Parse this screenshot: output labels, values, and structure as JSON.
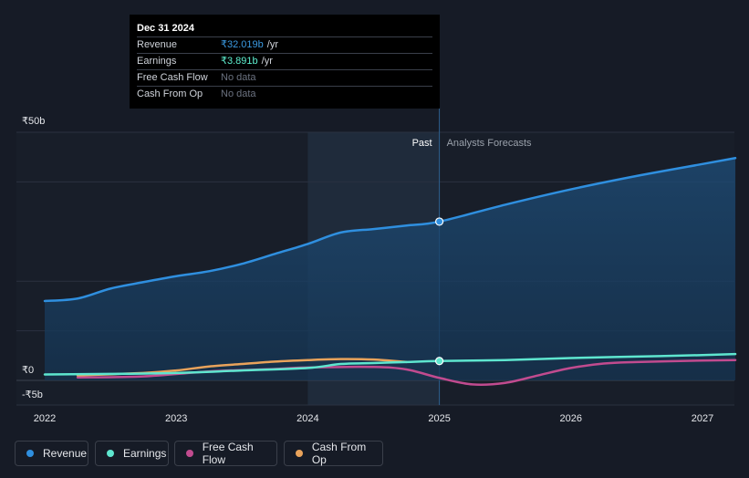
{
  "tooltip": {
    "date": "Dec 31 2024",
    "rows": [
      {
        "label": "Revenue",
        "value": "₹32.019b",
        "unit": "/yr",
        "color": "#3b9ae1"
      },
      {
        "label": "Earnings",
        "value": "₹3.891b",
        "unit": "/yr",
        "color": "#5ef0d0"
      },
      {
        "label": "Free Cash Flow",
        "value": "No data",
        "unit": ""
      },
      {
        "label": "Cash From Op",
        "value": "No data",
        "unit": ""
      }
    ]
  },
  "labels": {
    "past": "Past",
    "forecast": "Analysts Forecasts"
  },
  "legend": [
    {
      "label": "Revenue",
      "color": "#2f8fdf"
    },
    {
      "label": "Earnings",
      "color": "#5ee6cf"
    },
    {
      "label": "Free Cash Flow",
      "color": "#c14b8f"
    },
    {
      "label": "Cash From Op",
      "color": "#e9a35b"
    }
  ],
  "chart_data": {
    "type": "line",
    "units": "₹b",
    "y_ticks": [
      "₹50b",
      "₹0",
      "-₹5b"
    ],
    "y_tick_values": [
      50,
      0,
      -5
    ],
    "x_ticks": [
      "2022",
      "2023",
      "2024",
      "2025",
      "2026",
      "2027"
    ],
    "x_tick_values": [
      2022,
      2023,
      2024,
      2025,
      2026,
      2027
    ],
    "xlim": [
      2021.8,
      2027.25
    ],
    "ylim": [
      -5,
      50
    ],
    "past_cutoff": 2025.0,
    "highlight_start": 2024.0,
    "grid": true,
    "series": [
      {
        "name": "Revenue",
        "color": "#2f8fdf",
        "fill": true,
        "points": [
          [
            2022.0,
            16.0
          ],
          [
            2022.25,
            16.5
          ],
          [
            2022.5,
            18.5
          ],
          [
            2022.75,
            19.8
          ],
          [
            2023.0,
            21.0
          ],
          [
            2023.25,
            22.0
          ],
          [
            2023.5,
            23.5
          ],
          [
            2023.75,
            25.5
          ],
          [
            2024.0,
            27.5
          ],
          [
            2024.25,
            29.8
          ],
          [
            2024.5,
            30.5
          ],
          [
            2024.75,
            31.2
          ],
          [
            2025.0,
            32.0
          ],
          [
            2025.5,
            35.4
          ],
          [
            2026.0,
            38.5
          ],
          [
            2026.5,
            41.2
          ],
          [
            2027.0,
            43.6
          ],
          [
            2027.25,
            44.8
          ]
        ]
      },
      {
        "name": "Earnings",
        "color": "#5ee6cf",
        "fill": false,
        "points": [
          [
            2022.0,
            1.2
          ],
          [
            2022.5,
            1.3
          ],
          [
            2023.0,
            1.5
          ],
          [
            2023.5,
            2.0
          ],
          [
            2024.0,
            2.5
          ],
          [
            2024.25,
            3.3
          ],
          [
            2024.5,
            3.5
          ],
          [
            2024.75,
            3.7
          ],
          [
            2025.0,
            3.9
          ],
          [
            2025.5,
            4.1
          ],
          [
            2026.0,
            4.5
          ],
          [
            2026.5,
            4.8
          ],
          [
            2027.0,
            5.1
          ],
          [
            2027.25,
            5.3
          ]
        ]
      },
      {
        "name": "Free Cash Flow",
        "color": "#c14b8f",
        "fill": false,
        "points": [
          [
            2022.25,
            0.6
          ],
          [
            2022.75,
            0.8
          ],
          [
            2023.25,
            1.8
          ],
          [
            2023.75,
            2.3
          ],
          [
            2024.0,
            2.6
          ],
          [
            2024.5,
            2.7
          ],
          [
            2024.75,
            2.2
          ],
          [
            2025.0,
            0.5
          ],
          [
            2025.25,
            -0.8
          ],
          [
            2025.5,
            -0.5
          ],
          [
            2025.75,
            1.0
          ],
          [
            2026.0,
            2.5
          ],
          [
            2026.25,
            3.4
          ],
          [
            2026.5,
            3.7
          ],
          [
            2027.0,
            4.0
          ],
          [
            2027.25,
            4.1
          ]
        ]
      },
      {
        "name": "Cash From Op",
        "color": "#e9a35b",
        "fill": false,
        "points": [
          [
            2022.25,
            1.0
          ],
          [
            2022.75,
            1.5
          ],
          [
            2023.0,
            2.0
          ],
          [
            2023.25,
            2.8
          ],
          [
            2023.5,
            3.3
          ],
          [
            2023.75,
            3.8
          ],
          [
            2024.0,
            4.1
          ],
          [
            2024.25,
            4.3
          ],
          [
            2024.5,
            4.2
          ],
          [
            2024.75,
            3.7
          ]
        ]
      }
    ],
    "markers": [
      {
        "series": "Revenue",
        "x": 2025.0,
        "y": 32.0
      },
      {
        "series": "Earnings",
        "x": 2025.0,
        "y": 3.9
      }
    ]
  }
}
